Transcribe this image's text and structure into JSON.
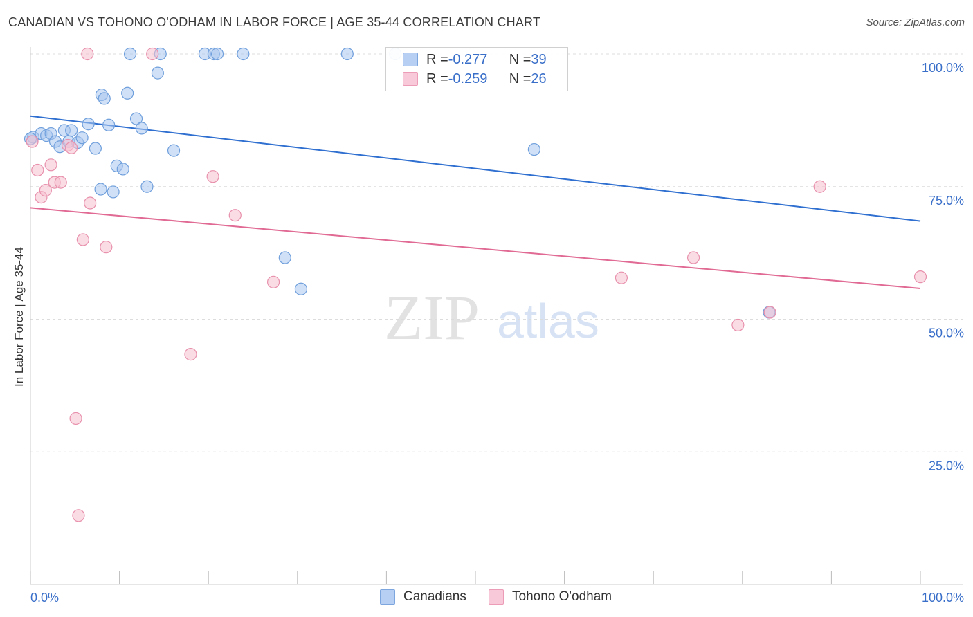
{
  "header": {
    "title": "CANADIAN VS TOHONO O'ODHAM IN LABOR FORCE | AGE 35-44 CORRELATION CHART",
    "source": "Source: ZipAtlas.com"
  },
  "legend": {
    "rows": [
      {
        "r_label": "R = ",
        "r_value": "-0.277",
        "n_label": "N = ",
        "n_value": "39"
      },
      {
        "r_label": "R = ",
        "r_value": "-0.259",
        "n_label": "N = ",
        "n_value": "26"
      }
    ],
    "bottom": [
      "Canadians",
      "Tohono O'odham"
    ]
  },
  "colors": {
    "blue_fill": "#a9c6ef",
    "blue_stroke": "#6f9fdc",
    "blue_line": "#2f6fd0",
    "pink_fill": "#f6bfd0",
    "pink_stroke": "#e890ac",
    "pink_line": "#e06a93",
    "tick_text": "#3a6fc9"
  },
  "watermark": {
    "part1": "ZIP",
    "part2": "atlas"
  },
  "chart_data": {
    "type": "scatter",
    "title": "CANADIAN VS TOHONO O'ODHAM IN LABOR FORCE | AGE 35-44 CORRELATION CHART",
    "xlabel": "",
    "ylabel": "In Labor Force | Age 35-44",
    "xlim": [
      0,
      100
    ],
    "ylim": [
      0,
      100
    ],
    "x_tick_labels": [
      "0.0%",
      "100.0%"
    ],
    "y_ticks": [
      25,
      50,
      75,
      100
    ],
    "y_tick_labels": [
      "25.0%",
      "50.0%",
      "75.0%",
      "100.0%"
    ],
    "grid": true,
    "legend_position": "top-center",
    "series": [
      {
        "name": "Canadians",
        "r": -0.277,
        "n": 39,
        "trend": [
          [
            0,
            88.3
          ],
          [
            100,
            68.5
          ]
        ],
        "points": [
          [
            0.3,
            84.3
          ],
          [
            1.2,
            85.0
          ],
          [
            1.8,
            84.6
          ],
          [
            2.3,
            85.0
          ],
          [
            2.8,
            83.5
          ],
          [
            3.3,
            82.5
          ],
          [
            3.8,
            85.6
          ],
          [
            4.3,
            83.5
          ],
          [
            4.6,
            85.6
          ],
          [
            5.3,
            83.3
          ],
          [
            5.8,
            84.2
          ],
          [
            6.5,
            86.8
          ],
          [
            7.3,
            82.2
          ],
          [
            7.9,
            74.5
          ],
          [
            8.0,
            92.3
          ],
          [
            8.3,
            91.6
          ],
          [
            8.8,
            86.6
          ],
          [
            9.3,
            74.0
          ],
          [
            9.7,
            78.9
          ],
          [
            10.4,
            78.3
          ],
          [
            10.9,
            92.6
          ],
          [
            11.2,
            100
          ],
          [
            11.9,
            87.8
          ],
          [
            12.5,
            86.0
          ],
          [
            13.1,
            75.0
          ],
          [
            14.3,
            96.4
          ],
          [
            14.6,
            100
          ],
          [
            16.1,
            81.8
          ],
          [
            19.6,
            100
          ],
          [
            20.6,
            100
          ],
          [
            21.0,
            100
          ],
          [
            23.9,
            100
          ],
          [
            28.6,
            61.6
          ],
          [
            30.4,
            55.7
          ],
          [
            35.6,
            100
          ],
          [
            41.0,
            100
          ],
          [
            56.6,
            82.0
          ],
          [
            83.0,
            51.3
          ],
          [
            0.0,
            84.0
          ]
        ]
      },
      {
        "name": "Tohono O'odham",
        "r": -0.259,
        "n": 26,
        "trend": [
          [
            0,
            71.0
          ],
          [
            100,
            55.8
          ]
        ],
        "points": [
          [
            0.2,
            83.5
          ],
          [
            0.8,
            78.1
          ],
          [
            1.2,
            73.0
          ],
          [
            1.7,
            74.3
          ],
          [
            2.3,
            79.1
          ],
          [
            2.7,
            75.8
          ],
          [
            3.4,
            75.8
          ],
          [
            4.2,
            82.8
          ],
          [
            4.6,
            82.3
          ],
          [
            5.1,
            31.3
          ],
          [
            5.4,
            13.0
          ],
          [
            5.9,
            65.0
          ],
          [
            6.4,
            100
          ],
          [
            6.7,
            71.9
          ],
          [
            8.5,
            63.6
          ],
          [
            13.7,
            100
          ],
          [
            18.0,
            43.4
          ],
          [
            20.5,
            76.9
          ],
          [
            23.0,
            69.6
          ],
          [
            27.3,
            57.0
          ],
          [
            66.4,
            57.8
          ],
          [
            74.5,
            61.6
          ],
          [
            79.5,
            48.9
          ],
          [
            83.1,
            51.3
          ],
          [
            88.7,
            75.0
          ],
          [
            100,
            58.0
          ]
        ]
      }
    ]
  }
}
